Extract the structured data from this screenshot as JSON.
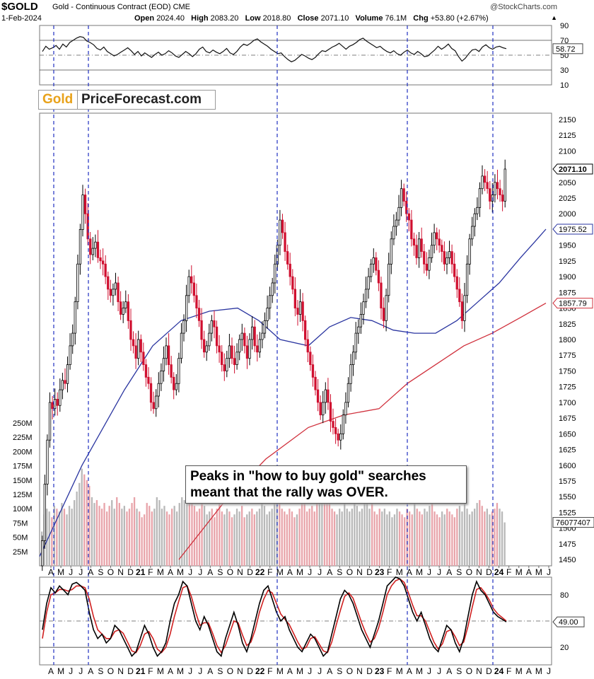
{
  "header": {
    "symbol": "$GOLD",
    "description": "Gold - Continuous Contract (EOD)",
    "exchange": "CME",
    "source": "@StockCharts.com",
    "date": "1-Feb-2024",
    "open_label": "Open",
    "open": "2024.40",
    "high_label": "High",
    "high": "2083.20",
    "low_label": "Low",
    "low": "2018.80",
    "close_label": "Close",
    "close": "2071.10",
    "volume_label": "Volume",
    "volume": "76.1M",
    "chg_label": "Chg",
    "chg": "+53.80 (+2.67%)"
  },
  "logo": {
    "part1": "Gold",
    "part2": "PriceForecast.com"
  },
  "annotation": {
    "line1": "Peaks in \"how to buy gold\" searches",
    "line2": "meant that the rally was OVER."
  },
  "colors": {
    "up": "#000000",
    "down": "#d01030",
    "ma50": "#2a35a0",
    "ma200": "#d0303c",
    "vol_up": "#b8b8b8",
    "vol_down": "#e8a4aa",
    "stoch_k": "#000000",
    "stoch_d": "#d02020",
    "vline": "#2030c0"
  },
  "chart_data": [
    {
      "type": "line",
      "name": "RSI",
      "ylim": [
        10,
        90
      ],
      "y_ticks": [
        "90",
        "70",
        "50",
        "30",
        "10"
      ],
      "last_value": "58.72",
      "values": [
        55,
        62,
        58,
        60,
        63,
        58,
        65,
        61,
        67,
        70,
        73,
        75,
        74,
        69,
        67,
        64,
        59,
        57,
        61,
        55,
        52,
        49,
        51,
        54,
        57,
        60,
        56,
        51,
        55,
        49,
        53,
        50,
        47,
        51,
        54,
        50,
        52,
        56,
        53,
        49,
        47,
        51,
        55,
        52,
        48,
        52,
        58,
        61,
        55,
        53,
        57,
        54,
        52,
        55,
        59,
        53,
        51,
        55,
        61,
        65,
        63,
        66,
        70,
        72,
        68,
        65,
        62,
        58,
        55,
        52,
        53,
        48,
        44,
        41,
        43,
        47,
        51,
        49,
        46,
        44,
        47,
        52,
        56,
        55,
        58,
        61,
        63,
        66,
        62,
        58,
        62,
        64,
        67,
        71,
        73,
        69,
        66,
        63,
        60,
        62,
        58,
        55,
        53,
        56,
        52,
        50,
        54,
        57,
        53,
        51,
        55,
        52,
        48,
        49,
        53,
        57,
        62,
        58,
        61,
        65,
        59,
        56,
        48,
        42,
        46,
        52,
        57,
        58,
        55,
        61,
        64,
        60,
        58,
        61,
        62,
        60,
        58.72
      ]
    },
    {
      "type": "candlestick",
      "name": "Gold",
      "ylim": [
        1440,
        2160
      ],
      "y_ticks": [
        "2150",
        "2125",
        "2100",
        "2075",
        "2050",
        "2025",
        "2000",
        "1975",
        "1950",
        "1925",
        "1900",
        "1875",
        "1850",
        "1825",
        "1800",
        "1775",
        "1750",
        "1725",
        "1700",
        "1675",
        "1650",
        "1625",
        "1600",
        "1575",
        "1550",
        "1525",
        "1500",
        "1475",
        "1450"
      ],
      "x_ticks": [
        "A",
        "M",
        "J",
        "J",
        "A",
        "S",
        "O",
        "N",
        "D",
        "21",
        "F",
        "M",
        "A",
        "M",
        "J",
        "J",
        "A",
        "S",
        "O",
        "N",
        "D",
        "22",
        "F",
        "M",
        "A",
        "M",
        "J",
        "J",
        "A",
        "S",
        "O",
        "N",
        "D",
        "23",
        "F",
        "M",
        "A",
        "M",
        "J",
        "J",
        "A",
        "S",
        "O",
        "N",
        "D",
        "24",
        "F",
        "M",
        "A",
        "M",
        "J"
      ],
      "closes": [
        1480,
        1570,
        1640,
        1700,
        1690,
        1705,
        1695,
        1720,
        1735,
        1730,
        1760,
        1790,
        1810,
        1860,
        1920,
        1975,
        2030,
        2000,
        1960,
        1935,
        1945,
        1955,
        1930,
        1925,
        1920,
        1900,
        1880,
        1870,
        1880,
        1890,
        1860,
        1840,
        1850,
        1860,
        1830,
        1800,
        1790,
        1770,
        1800,
        1780,
        1760,
        1740,
        1730,
        1700,
        1690,
        1710,
        1730,
        1750,
        1770,
        1790,
        1760,
        1740,
        1720,
        1730,
        1770,
        1810,
        1830,
        1870,
        1900,
        1890,
        1870,
        1850,
        1830,
        1800,
        1780,
        1790,
        1810,
        1830,
        1820,
        1790,
        1780,
        1760,
        1750,
        1770,
        1790,
        1770,
        1760,
        1780,
        1800,
        1810,
        1790,
        1770,
        1800,
        1820,
        1790,
        1780,
        1800,
        1810,
        1830,
        1850,
        1870,
        1890,
        1920,
        1950,
        1990,
        1970,
        1940,
        1920,
        1900,
        1880,
        1850,
        1840,
        1860,
        1830,
        1800,
        1780,
        1760,
        1740,
        1720,
        1700,
        1680,
        1700,
        1720,
        1700,
        1670,
        1660,
        1650,
        1640,
        1650,
        1680,
        1700,
        1730,
        1760,
        1780,
        1810,
        1820,
        1840,
        1860,
        1880,
        1900,
        1920,
        1930,
        1910,
        1890,
        1850,
        1830,
        1870,
        1920,
        1960,
        1980,
        1990,
        2010,
        2040,
        2020,
        2000,
        1990,
        1960,
        1950,
        1930,
        1960,
        1940,
        1920,
        1910,
        1930,
        1950,
        1970,
        1960,
        1950,
        1940,
        1920,
        1930,
        1940,
        1920,
        1900,
        1880,
        1860,
        1830,
        1870,
        1920,
        1960,
        1980,
        2000,
        2010,
        2040,
        2060,
        2050,
        2040,
        2020,
        2030,
        2050,
        2040,
        2030,
        2020,
        2071.1
      ],
      "last_close": "2071.10",
      "ma50_label": "1975.52",
      "ma200_label": "1857.79",
      "ma50_points": [
        [
          0,
          1455
        ],
        [
          60,
          1600
        ],
        [
          120,
          1720
        ],
        [
          160,
          1790
        ],
        [
          200,
          1830
        ],
        [
          240,
          1845
        ],
        [
          280,
          1850
        ],
        [
          310,
          1830
        ],
        [
          340,
          1800
        ],
        [
          380,
          1790
        ],
        [
          410,
          1820
        ],
        [
          440,
          1835
        ],
        [
          470,
          1830
        ],
        [
          500,
          1815
        ],
        [
          530,
          1810
        ],
        [
          560,
          1810
        ],
        [
          590,
          1830
        ],
        [
          620,
          1860
        ],
        [
          650,
          1890
        ],
        [
          680,
          1930
        ],
        [
          700,
          1955
        ],
        [
          716,
          1975.52
        ]
      ],
      "ma200_points": [
        [
          197,
          1450
        ],
        [
          260,
          1540
        ],
        [
          320,
          1610
        ],
        [
          380,
          1660
        ],
        [
          430,
          1680
        ],
        [
          480,
          1690
        ],
        [
          520,
          1730
        ],
        [
          560,
          1760
        ],
        [
          600,
          1790
        ],
        [
          640,
          1810
        ],
        [
          680,
          1835
        ],
        [
          716,
          1857.79
        ]
      ]
    },
    {
      "type": "bar",
      "name": "Volume",
      "ylim": [
        0,
        250
      ],
      "y_ticks": [
        "250M",
        "225M",
        "200M",
        "175M",
        "150M",
        "125M",
        "100M",
        "75M",
        "50M",
        "25M"
      ],
      "last_value": "76077407",
      "values": [
        60,
        90,
        100,
        95,
        85,
        105,
        100,
        95,
        110,
        100,
        90,
        105,
        100,
        115,
        130,
        145,
        170,
        160,
        150,
        140,
        120,
        110,
        115,
        105,
        100,
        110,
        95,
        105,
        115,
        100,
        120,
        110,
        100,
        105,
        95,
        100,
        110,
        120,
        100,
        95,
        85,
        90,
        110,
        105,
        95,
        100,
        120,
        115,
        100,
        105,
        95,
        90,
        100,
        105,
        95,
        110,
        120,
        115,
        130,
        125,
        110,
        105,
        95,
        100,
        110,
        105,
        90,
        95,
        100,
        85,
        100,
        110,
        95,
        90,
        100,
        95,
        85,
        90,
        100,
        95,
        105,
        85,
        90,
        95,
        100,
        90,
        95,
        100,
        110,
        105,
        90,
        95,
        100,
        120,
        130,
        110,
        100,
        95,
        90,
        100,
        95,
        85,
        90,
        100,
        110,
        115,
        95,
        100,
        105,
        95,
        110,
        115,
        120,
        130,
        125,
        115,
        100,
        95,
        90,
        100,
        95,
        110,
        100,
        95,
        100,
        110,
        105,
        95,
        100,
        110,
        120,
        100,
        110,
        95,
        90,
        100,
        95,
        100,
        90,
        95,
        85,
        90,
        100,
        95,
        90,
        85,
        100,
        95,
        90,
        110,
        100,
        95,
        90,
        100,
        95,
        105,
        110,
        95,
        90,
        85,
        95,
        90,
        100,
        95,
        90,
        85,
        100,
        105,
        95,
        110,
        100,
        90,
        95,
        100,
        110,
        115,
        105,
        95,
        100,
        90,
        95,
        100,
        110,
        100,
        95,
        76
      ]
    },
    {
      "type": "line",
      "name": "Stochastic",
      "ylim": [
        0,
        100
      ],
      "y_ticks": [
        "80",
        "20"
      ],
      "last_value": "49.00",
      "k_values": [
        40,
        70,
        88,
        82,
        90,
        85,
        80,
        92,
        94,
        90,
        85,
        60,
        40,
        30,
        35,
        25,
        30,
        45,
        40,
        30,
        20,
        10,
        15,
        30,
        45,
        35,
        20,
        10,
        15,
        25,
        50,
        70,
        80,
        95,
        90,
        70,
        50,
        40,
        55,
        45,
        30,
        15,
        10,
        30,
        45,
        60,
        45,
        25,
        15,
        30,
        50,
        70,
        85,
        90,
        75,
        60,
        50,
        55,
        40,
        30,
        20,
        15,
        25,
        35,
        30,
        20,
        10,
        15,
        35,
        55,
        75,
        85,
        80,
        70,
        55,
        40,
        30,
        20,
        35,
        50,
        70,
        90,
        95,
        100,
        98,
        90,
        75,
        60,
        50,
        60,
        45,
        30,
        20,
        15,
        30,
        45,
        40,
        25,
        15,
        30,
        55,
        80,
        95,
        85,
        80,
        70,
        60,
        55,
        52,
        49
      ],
      "d_values": [
        30,
        60,
        80,
        82,
        86,
        86,
        84,
        86,
        90,
        90,
        88,
        75,
        55,
        40,
        35,
        30,
        30,
        38,
        40,
        36,
        26,
        16,
        14,
        22,
        35,
        38,
        30,
        18,
        14,
        20,
        35,
        55,
        72,
        88,
        90,
        78,
        60,
        45,
        48,
        48,
        36,
        22,
        14,
        22,
        36,
        50,
        48,
        34,
        22,
        26,
        40,
        60,
        75,
        85,
        82,
        70,
        58,
        52,
        46,
        36,
        26,
        18,
        20,
        30,
        32,
        24,
        16,
        14,
        26,
        45,
        62,
        78,
        82,
        76,
        62,
        48,
        36,
        26,
        30,
        42,
        60,
        80,
        90,
        96,
        98,
        94,
        82,
        68,
        56,
        56,
        50,
        38,
        26,
        18,
        24,
        38,
        40,
        32,
        22,
        26,
        44,
        66,
        86,
        88,
        82,
        74,
        64,
        58,
        54,
        50
      ]
    }
  ]
}
